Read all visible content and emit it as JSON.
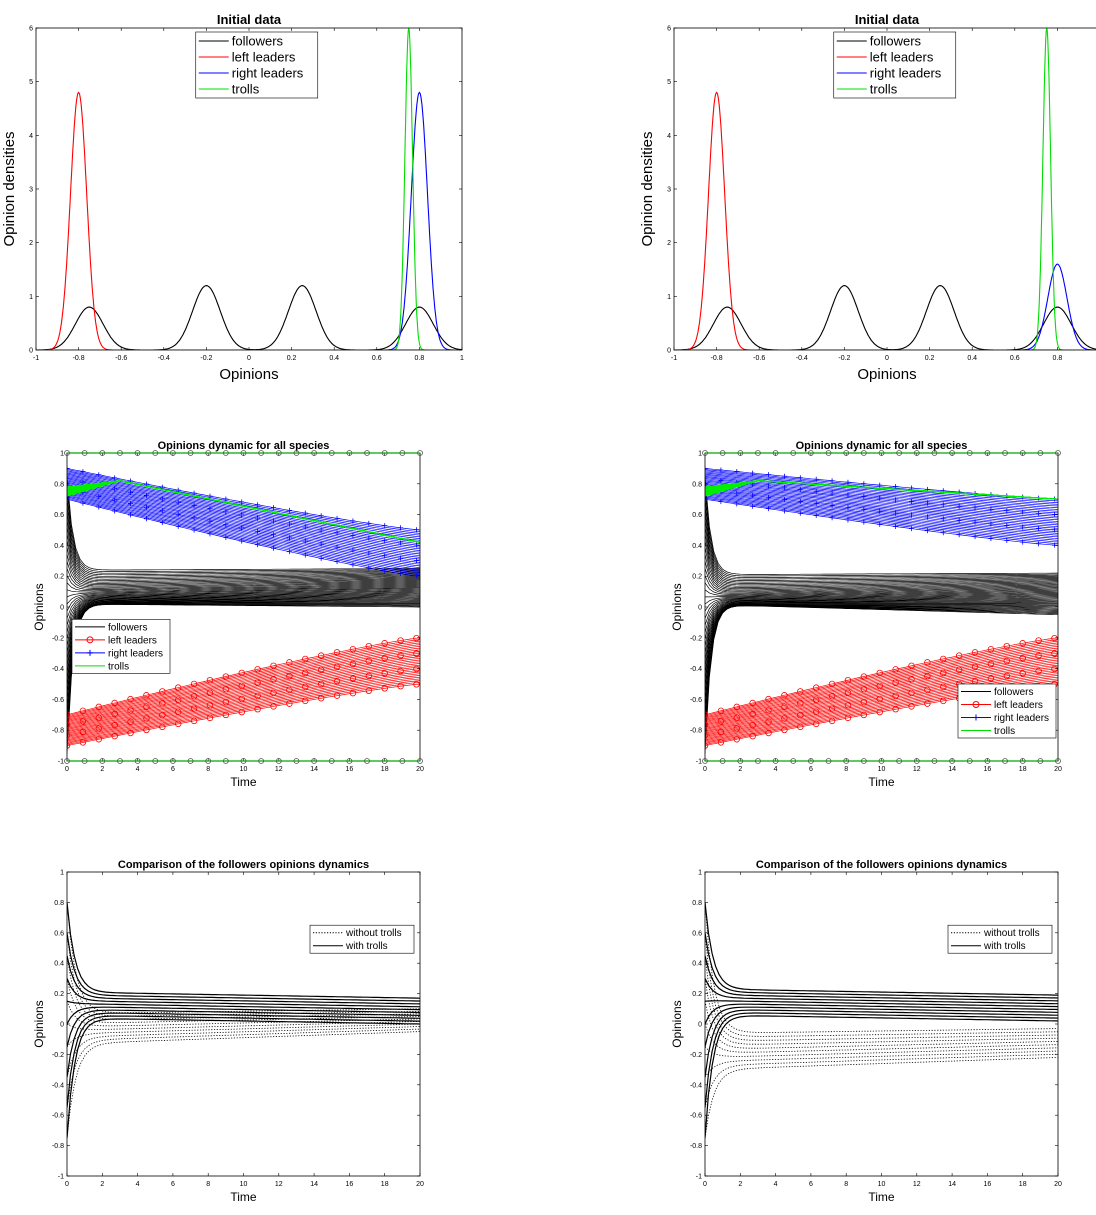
{
  "figure": "six panels",
  "chart_data": [
    {
      "type": "line",
      "title": "Initial data",
      "xlabel": "Opinions",
      "ylabel": "Opinion densities",
      "xlim": [
        -1,
        1
      ],
      "ylim": [
        0,
        6
      ],
      "xticks": [
        "-1",
        "-0.8",
        "-0.6",
        "-0.4",
        "-0.2",
        "0",
        "0.2",
        "0.4",
        "0.6",
        "0.8",
        "1"
      ],
      "yticks": [
        "0",
        "1",
        "2",
        "3",
        "4",
        "5",
        "6"
      ],
      "legend": [
        "followers",
        "left leaders",
        "right leaders",
        "trolls"
      ],
      "legend_position": "top",
      "series_colors": [
        "#000000",
        "#ff0000",
        "#0000ff",
        "#00cc00"
      ],
      "followers": {
        "peaks": [
          -0.75,
          -0.2,
          0.25,
          0.8
        ],
        "heights": [
          0.8,
          1.2,
          1.2,
          0.8
        ]
      },
      "left_leaders": {
        "center": -0.8,
        "height": 4.8
      },
      "right_leaders": {
        "center": 0.8,
        "height": 4.8
      },
      "trolls": {
        "center": 0.75,
        "height": 6.0
      }
    },
    {
      "type": "line",
      "title": "Initial data",
      "xlabel": "Opinions",
      "ylabel": "Opinion densities",
      "xlim": [
        -1,
        1
      ],
      "ylim": [
        0,
        6
      ],
      "xticks": [
        "-1",
        "-0.8",
        "-0.6",
        "-0.4",
        "-0.2",
        "0",
        "0.2",
        "0.4",
        "0.6",
        "0.8"
      ],
      "yticks": [
        "0",
        "1",
        "2",
        "3",
        "4",
        "5",
        "6"
      ],
      "legend": [
        "followers",
        "left leaders",
        "right leaders",
        "trolls"
      ],
      "legend_position": "top",
      "series_colors": [
        "#000000",
        "#ff0000",
        "#0000ff",
        "#00cc00"
      ],
      "followers": {
        "peaks": [
          -0.75,
          -0.2,
          0.25,
          0.8
        ],
        "heights": [
          0.8,
          1.2,
          1.2,
          0.8
        ]
      },
      "left_leaders": {
        "center": -0.8,
        "height": 4.8
      },
      "right_leaders": {
        "center": 0.8,
        "height": 1.6
      },
      "trolls": {
        "center": 0.75,
        "height": 6.0
      }
    },
    {
      "type": "line",
      "title": "Opinions dynamic for all species",
      "xlabel": "Time",
      "ylabel": "Opinions",
      "xlim": [
        0,
        20
      ],
      "ylim": [
        -1,
        1
      ],
      "xticks": [
        "0",
        "2",
        "4",
        "6",
        "8",
        "10",
        "12",
        "14",
        "16",
        "18",
        "20"
      ],
      "yticks": [
        "-1",
        "-0.8",
        "-0.6",
        "-0.4",
        "-0.2",
        "0",
        "0.2",
        "0.4",
        "0.6",
        "0.8",
        "1"
      ],
      "legend": [
        "followers",
        "left leaders",
        "right leaders",
        "trolls"
      ],
      "legend_position": "middle-left",
      "followers_band_end": [
        0.0,
        0.25
      ],
      "left_leaders_band": {
        "start": [
          -0.9,
          -0.7
        ],
        "end": [
          -0.5,
          -0.2
        ]
      },
      "right_leaders_band": {
        "start": [
          0.7,
          0.9
        ],
        "end": [
          0.2,
          0.5
        ]
      },
      "trolls_line": {
        "start": 0.75,
        "peak": 0.82,
        "end": 0.42
      }
    },
    {
      "type": "line",
      "title": "Opinions dynamic for all species",
      "xlabel": "Time",
      "ylabel": "Opinions",
      "xlim": [
        0,
        20
      ],
      "ylim": [
        -1,
        1
      ],
      "xticks": [
        "0",
        "2",
        "4",
        "6",
        "8",
        "10",
        "12",
        "14",
        "16",
        "18",
        "20"
      ],
      "yticks": [
        "-1",
        "-0.8",
        "-0.6",
        "-0.4",
        "-0.2",
        "0",
        "0.2",
        "0.4",
        "0.6",
        "0.8",
        "1"
      ],
      "legend": [
        "followers",
        "left leaders",
        "right leaders",
        "trolls"
      ],
      "legend_position": "bottom-right",
      "followers_band_end": [
        -0.05,
        0.22
      ],
      "left_leaders_band": {
        "start": [
          -0.9,
          -0.7
        ],
        "end": [
          -0.5,
          -0.2
        ]
      },
      "right_leaders_band": {
        "start": [
          0.7,
          0.9
        ],
        "end": [
          0.4,
          0.7
        ]
      },
      "trolls_line": {
        "start": 0.75,
        "peak": 0.82,
        "end": 0.7
      }
    },
    {
      "type": "line",
      "title": "Comparison of the followers opinions dynamics",
      "xlabel": "Time",
      "ylabel": "Opinions",
      "xlim": [
        0,
        20
      ],
      "ylim": [
        -1,
        1
      ],
      "xticks": [
        "0",
        "2",
        "4",
        "6",
        "8",
        "10",
        "12",
        "14",
        "16",
        "18",
        "20"
      ],
      "yticks": [
        "-1",
        "-0.8",
        "-0.6",
        "-0.4",
        "-0.2",
        "0",
        "0.2",
        "0.4",
        "0.6",
        "0.8",
        "1"
      ],
      "legend": [
        "without trolls",
        "with trolls"
      ],
      "legend_position": "top-right",
      "with_trolls_end": [
        0.0,
        0.17
      ],
      "without_trolls_end": [
        -0.05,
        0.1
      ]
    },
    {
      "type": "line",
      "title": "Comparison of the followers opinions dynamics",
      "xlabel": "Time",
      "ylabel": "Opinions",
      "xlim": [
        0,
        20
      ],
      "ylim": [
        -1,
        1
      ],
      "xticks": [
        "0",
        "2",
        "4",
        "6",
        "8",
        "10",
        "12",
        "14",
        "16",
        "18",
        "20"
      ],
      "yticks": [
        "-1",
        "-0.8",
        "-0.6",
        "-0.4",
        "-0.2",
        "0",
        "0.2",
        "0.4",
        "0.6",
        "0.8",
        "1"
      ],
      "legend": [
        "without trolls",
        "with trolls"
      ],
      "legend_position": "top-right",
      "with_trolls_end": [
        0.02,
        0.19
      ],
      "without_trolls_end": [
        -0.22,
        -0.03
      ]
    }
  ]
}
